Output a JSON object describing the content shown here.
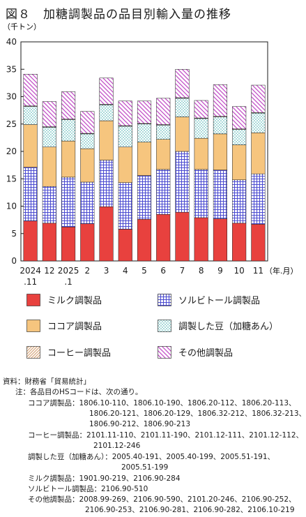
{
  "title": "図８　加糖調製品の品目別輸入量の推移",
  "colors": {
    "milk": "#e8413e",
    "sorbitol_line": "#4a4ad0",
    "cocoa": "#f6c57e",
    "bean_dot": "#34a9a9",
    "coffee": "#d8a77c",
    "other": "#c24ec7"
  },
  "chart_data": {
    "type": "bar",
    "stacked": true,
    "ylabel": "（千トン）",
    "xlabel": "（年.月）",
    "ylim": [
      0,
      40
    ],
    "yticks": [
      0,
      5,
      10,
      15,
      20,
      25,
      30,
      35,
      40
    ],
    "grid": false,
    "legend_position": "bottom",
    "categories": [
      "2024.11",
      "12",
      "2025.1",
      "2",
      "3",
      "4",
      "5",
      "6",
      "7",
      "8",
      "9",
      "10",
      "11"
    ],
    "tick_labels": [
      [
        "2024",
        ".11"
      ],
      [
        "12"
      ],
      [
        "2025",
        ".1"
      ],
      [
        "2"
      ],
      [
        "3"
      ],
      [
        "4"
      ],
      [
        "5"
      ],
      [
        "6"
      ],
      [
        "7"
      ],
      [
        "8"
      ],
      [
        "9"
      ],
      [
        "10"
      ],
      [
        "11"
      ]
    ],
    "series": [
      {
        "name": "ミルク調製品",
        "key": "milk",
        "values": [
          7.3,
          6.9,
          6.2,
          6.8,
          9.9,
          5.8,
          7.6,
          8.5,
          8.9,
          7.9,
          7.7,
          6.9,
          6.7
        ]
      },
      {
        "name": "ソルビトール調製品",
        "key": "sorbitol",
        "values": [
          9.8,
          6.7,
          9.1,
          7.6,
          8.5,
          8.5,
          8.0,
          8.2,
          11.1,
          8.8,
          8.9,
          7.9,
          9.2
        ]
      },
      {
        "name": "ココア調製品",
        "key": "cocoa",
        "values": [
          7.8,
          7.2,
          6.6,
          6.1,
          7.2,
          6.5,
          6.1,
          5.5,
          6.3,
          5.7,
          6.6,
          6.4,
          7.5
        ]
      },
      {
        "name": "調製した豆（加糖あん）",
        "key": "bean",
        "values": [
          3.3,
          3.6,
          3.9,
          2.7,
          2.9,
          3.8,
          3.3,
          2.6,
          3.4,
          3.6,
          3.1,
          2.8,
          3.6
        ]
      },
      {
        "name": "コーヒー調製品",
        "key": "coffee",
        "values": [
          0.1,
          0.1,
          0.1,
          0.1,
          0.1,
          0.1,
          0.1,
          0.1,
          0.1,
          0.1,
          0.1,
          0.1,
          0.1
        ]
      },
      {
        "name": "その他調製品",
        "key": "other",
        "values": [
          5.8,
          4.6,
          5.0,
          4.0,
          4.8,
          4.5,
          4.1,
          4.8,
          5.2,
          3.2,
          5.8,
          4.1,
          5.0
        ]
      }
    ]
  },
  "notes": [
    {
      "label": "資料：財務省「貿易統計」",
      "indent": 0
    },
    {
      "label": "注：各品目のHSコードは、次の通り。",
      "indent": 1
    },
    {
      "label": "ココア調製品：1806.10-110、1806.10-190、1806.20-112、1806.20-113、",
      "indent": 2
    },
    {
      "label": "1806.20-121、1806.20-129、1806.32-212、1806.32-213、",
      "indent": 3
    },
    {
      "label": "1806.90-212、1806.90-213",
      "indent": 3
    },
    {
      "label": "コーヒー調製品：2101.11-110、2101.11-190、2101.12-111、2101.12-112、",
      "indent": 2
    },
    {
      "label": "2101.12-246",
      "indent": 4
    },
    {
      "label": "調製した豆（加糖あん）：2005.40-191、2005.40-199、2005.51-191、",
      "indent": 2
    },
    {
      "label": "2005.51-199",
      "indent": 5
    },
    {
      "label": "ミルク調製品：1901.90-219、2106.90-284",
      "indent": 2
    },
    {
      "label": "ソルビトール調製品：2106.90-510",
      "indent": 2
    },
    {
      "label": "その他調製品：2008.99-269、2106.90-590、2101.20-246、2106.90-252、",
      "indent": 2
    },
    {
      "label": "2106.90-253、2106.90-281、2106.90-282、2106.10-219",
      "indent": 6
    }
  ]
}
